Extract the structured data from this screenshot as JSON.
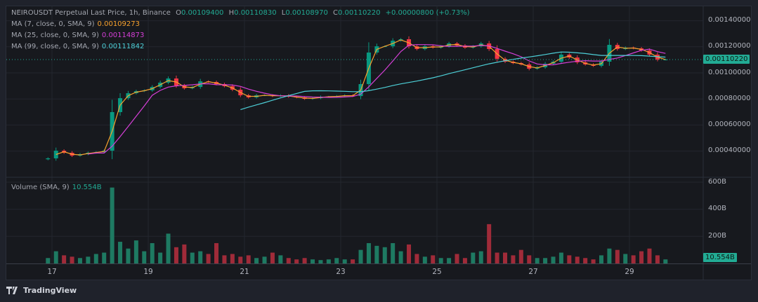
{
  "header": {
    "symbol_line": "NEIROUSDT Perpetual Last Price, 1h, Binance",
    "open_label": "O",
    "open": "0.00109400",
    "high_label": "H",
    "high": "0.00110830",
    "low_label": "L",
    "low": "0.00108970",
    "close_label": "C",
    "close": "0.00110220",
    "change": "+0.00000800 (+0.73%)"
  },
  "indicators": [
    {
      "label": "MA (7, close, 0, SMA, 9)",
      "value": "0.00109273",
      "color": "#f7a12d"
    },
    {
      "label": "MA (25, close, 0, SMA, 9)",
      "value": "0.00114873",
      "color": "#d63fd8"
    },
    {
      "label": "MA (99, close, 0, SMA, 9)",
      "value": "0.00111842",
      "color": "#4dd0d8"
    }
  ],
  "volume_legend": {
    "label": "Volume (SMA, 9)",
    "value": "10.554B"
  },
  "price_axis": [
    "0.00140000",
    "0.00120000",
    "0.00100000",
    "0.00080000",
    "0.00060000",
    "0.00040000"
  ],
  "volume_axis": [
    "600B",
    "400B",
    "200B"
  ],
  "last_price_badge": "0.00110220",
  "last_volume_badge": "10.554B",
  "time_axis": [
    "17",
    "19",
    "21",
    "23",
    "25",
    "27",
    "29"
  ],
  "branding": "TradingView",
  "colors": {
    "up": "#089981",
    "down": "#f23645",
    "up_volume": "#1e7a62",
    "down_volume": "#a02b39",
    "background": "#17191e"
  },
  "chart_data": {
    "type": "candlestick",
    "title": "NEIROUSDT Perpetual Last Price, 1h, Binance",
    "price_range": [
      0.0003,
      0.00145
    ],
    "volume_range": [
      0,
      620
    ],
    "volume_unit": "B",
    "grid": true,
    "x_ticks": [
      "17",
      "19",
      "21",
      "23",
      "25",
      "27",
      "29"
    ],
    "candles": [
      {
        "t": "16 22:00",
        "c": 0.000344,
        "v": 40
      },
      {
        "t": "17 02:00",
        "c": 0.000403,
        "v": 90
      },
      {
        "t": "17 06:00",
        "c": 0.000387,
        "v": 60
      },
      {
        "t": "17 10:00",
        "c": 0.000365,
        "v": 50
      },
      {
        "t": "17 14:00",
        "c": 0.000376,
        "v": 40
      },
      {
        "t": "17 18:00",
        "c": 0.000387,
        "v": 50
      },
      {
        "t": "17 22:00",
        "c": 0.000392,
        "v": 70
      },
      {
        "t": "18 02:00",
        "c": 0.000403,
        "v": 80
      },
      {
        "t": "18 06:00",
        "c": 0.000699,
        "v": 560
      },
      {
        "t": "18 10:00",
        "c": 0.000806,
        "v": 160
      },
      {
        "t": "18 14:00",
        "c": 0.000844,
        "v": 110
      },
      {
        "t": "18 18:00",
        "c": 0.00086,
        "v": 170
      },
      {
        "t": "18 22:00",
        "c": 0.000866,
        "v": 90
      },
      {
        "t": "19 02:00",
        "c": 0.000892,
        "v": 150
      },
      {
        "t": "19 06:00",
        "c": 0.000925,
        "v": 80
      },
      {
        "t": "19 10:00",
        "c": 0.000957,
        "v": 220
      },
      {
        "t": "19 14:00",
        "c": 0.000903,
        "v": 120
      },
      {
        "t": "19 18:00",
        "c": 0.000882,
        "v": 140
      },
      {
        "t": "19 22:00",
        "c": 0.000892,
        "v": 80
      },
      {
        "t": "20 02:00",
        "c": 0.000935,
        "v": 90
      },
      {
        "t": "20 06:00",
        "c": 0.00093,
        "v": 70
      },
      {
        "t": "20 10:00",
        "c": 0.000914,
        "v": 150
      },
      {
        "t": "20 14:00",
        "c": 0.000898,
        "v": 60
      },
      {
        "t": "20 18:00",
        "c": 0.000871,
        "v": 70
      },
      {
        "t": "20 22:00",
        "c": 0.000828,
        "v": 50
      },
      {
        "t": "21 02:00",
        "c": 0.000812,
        "v": 60
      },
      {
        "t": "21 06:00",
        "c": 0.000828,
        "v": 40
      },
      {
        "t": "21 10:00",
        "c": 0.000828,
        "v": 50
      },
      {
        "t": "21 14:00",
        "c": 0.000822,
        "v": 80
      },
      {
        "t": "21 18:00",
        "c": 0.000828,
        "v": 60
      },
      {
        "t": "21 22:00",
        "c": 0.000817,
        "v": 40
      },
      {
        "t": "22 02:00",
        "c": 0.000812,
        "v": 30
      },
      {
        "t": "22 06:00",
        "c": 0.000801,
        "v": 40
      },
      {
        "t": "22 10:00",
        "c": 0.000806,
        "v": 30
      },
      {
        "t": "22 14:00",
        "c": 0.000817,
        "v": 25
      },
      {
        "t": "22 18:00",
        "c": 0.000817,
        "v": 30
      },
      {
        "t": "22 22:00",
        "c": 0.000822,
        "v": 40
      },
      {
        "t": "23 02:00",
        "c": 0.000828,
        "v": 30
      },
      {
        "t": "23 06:00",
        "c": 0.000822,
        "v": 30
      },
      {
        "t": "23 10:00",
        "c": 0.000914,
        "v": 100
      },
      {
        "t": "23 14:00",
        "c": 0.001156,
        "v": 150
      },
      {
        "t": "23 18:00",
        "c": 0.001204,
        "v": 130
      },
      {
        "t": "23 22:00",
        "c": 0.001204,
        "v": 120
      },
      {
        "t": "24 02:00",
        "c": 0.001247,
        "v": 150
      },
      {
        "t": "24 06:00",
        "c": 0.001258,
        "v": 90
      },
      {
        "t": "24 10:00",
        "c": 0.001204,
        "v": 140
      },
      {
        "t": "24 14:00",
        "c": 0.001183,
        "v": 70
      },
      {
        "t": "24 18:00",
        "c": 0.001204,
        "v": 50
      },
      {
        "t": "24 22:00",
        "c": 0.001194,
        "v": 60
      },
      {
        "t": "25 02:00",
        "c": 0.001204,
        "v": 40
      },
      {
        "t": "25 06:00",
        "c": 0.001226,
        "v": 40
      },
      {
        "t": "25 10:00",
        "c": 0.00121,
        "v": 70
      },
      {
        "t": "25 14:00",
        "c": 0.001194,
        "v": 40
      },
      {
        "t": "25 18:00",
        "c": 0.001204,
        "v": 80
      },
      {
        "t": "25 22:00",
        "c": 0.001226,
        "v": 90
      },
      {
        "t": "26 02:00",
        "c": 0.001183,
        "v": 290
      },
      {
        "t": "26 06:00",
        "c": 0.001108,
        "v": 80
      },
      {
        "t": "26 10:00",
        "c": 0.001086,
        "v": 80
      },
      {
        "t": "26 14:00",
        "c": 0.001075,
        "v": 60
      },
      {
        "t": "26 18:00",
        "c": 0.001065,
        "v": 100
      },
      {
        "t": "26 22:00",
        "c": 0.001032,
        "v": 60
      },
      {
        "t": "27 02:00",
        "c": 0.001043,
        "v": 40
      },
      {
        "t": "27 06:00",
        "c": 0.00107,
        "v": 40
      },
      {
        "t": "27 10:00",
        "c": 0.001086,
        "v": 50
      },
      {
        "t": "27 14:00",
        "c": 0.00114,
        "v": 80
      },
      {
        "t": "27 18:00",
        "c": 0.001118,
        "v": 60
      },
      {
        "t": "27 22:00",
        "c": 0.001081,
        "v": 50
      },
      {
        "t": "28 02:00",
        "c": 0.001065,
        "v": 40
      },
      {
        "t": "28 06:00",
        "c": 0.001054,
        "v": 30
      },
      {
        "t": "28 10:00",
        "c": 0.001086,
        "v": 60
      },
      {
        "t": "28 14:00",
        "c": 0.001215,
        "v": 110
      },
      {
        "t": "28 18:00",
        "c": 0.001183,
        "v": 100
      },
      {
        "t": "28 22:00",
        "c": 0.001194,
        "v": 70
      },
      {
        "t": "29 02:00",
        "c": 0.001188,
        "v": 60
      },
      {
        "t": "29 06:00",
        "c": 0.001172,
        "v": 90
      },
      {
        "t": "29 10:00",
        "c": 0.00114,
        "v": 110
      },
      {
        "t": "29 14:00",
        "c": 0.001102,
        "v": 60
      },
      {
        "t": "29 18:00",
        "c": 0.0011022,
        "v": 30
      }
    ]
  }
}
